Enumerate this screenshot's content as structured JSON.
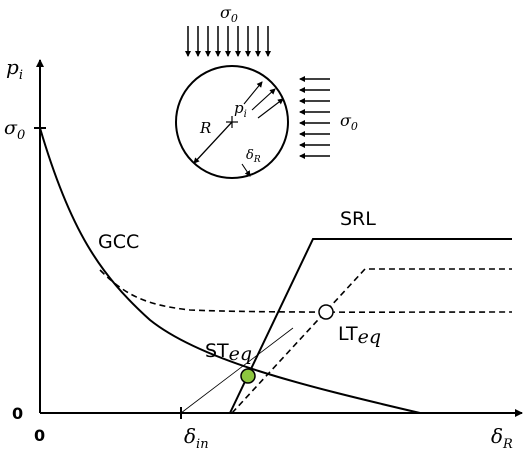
{
  "axes": {
    "y_label": "p",
    "y_label_sub": "i",
    "x_label": "δ",
    "x_label_sub": "R",
    "y_tick_sigma": "σ",
    "y_tick_sigma_sub": "0",
    "y_tick_zero": "0",
    "x_tick_zero": "0",
    "x_tick_din": "δ",
    "x_tick_din_sub": "in"
  },
  "curves": {
    "gcc": "GCC",
    "srl": "SRL",
    "st_eq": "ST",
    "st_eq_sub": "eq",
    "lt_eq": "LT",
    "lt_eq_sub": "eq"
  },
  "inset": {
    "sigma_top": "σ",
    "sigma_top_sub": "0",
    "sigma_right": "σ",
    "sigma_right_sub": "0",
    "radius": "R",
    "pressure": "p",
    "pressure_sub": "i",
    "delta": "δ",
    "delta_sub": "R"
  },
  "colors": {
    "line": "#000000",
    "st_eq_point": "#8dc63f",
    "lt_eq_point": "#ffffff"
  }
}
